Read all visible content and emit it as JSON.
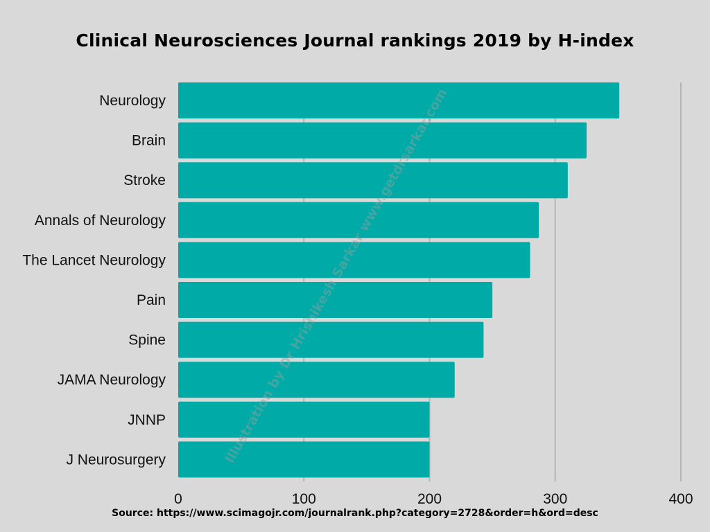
{
  "chart_data": {
    "type": "bar",
    "orientation": "horizontal",
    "title": "Clinical Neurosciences Journal rankings 2019 by H-index",
    "categories": [
      "Neurology ",
      "Brain",
      "Stroke",
      "Annals of Neurology",
      "The Lancet Neurology",
      "Pain",
      "Spine",
      "JAMA Neurology",
      "JNNP",
      "J Neurosurgery"
    ],
    "values": [
      351,
      325,
      310,
      287,
      280,
      250,
      243,
      220,
      200,
      200
    ],
    "xlim": [
      0,
      400
    ],
    "xticks": [
      "0",
      "100",
      "200",
      "300",
      "400"
    ],
    "grid": "vertical",
    "bar_color": "#00aaa6",
    "grid_color": "#b5b5b5"
  },
  "watermark": "Illustration by Dr Hrishikesh Sarkar www.getdrsarkar.com",
  "source": "Source: https://www.scimagojr.com/journalrank.php?category=2728&order=h&ord=desc"
}
